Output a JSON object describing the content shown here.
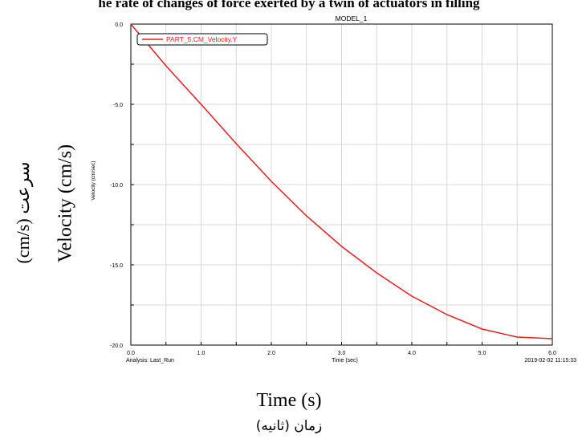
{
  "page_title": "he rate of changes of force exerted by a twin of actuators in filling",
  "y_label_fa": "سرعت (cm/s)",
  "y_label_en": "Velocity (cm/s)",
  "x_label_en": "Time (s)",
  "x_label_fa": "زمان (ثانیه)",
  "chart_data": {
    "type": "line",
    "title": "MODEL_1",
    "xlabel": "Time (sec)",
    "ylabel": "Velocity (cm/sec)",
    "xlim": [
      0,
      6
    ],
    "ylim": [
      -20,
      0
    ],
    "x_ticks": [
      "0.0",
      "1.0",
      "2.0",
      "3.0",
      "4.0",
      "5.0",
      "6.0"
    ],
    "y_ticks": [
      "0.0",
      "-5.0",
      "-10.0",
      "-15.0",
      "-20.0"
    ],
    "grid": true,
    "legend_position": "top-left",
    "footer_left": "Analysis:  Last_Run",
    "footer_right": "2019-02-02 11:15:33",
    "series": [
      {
        "name": "PART_5.CM_Velocity.Y",
        "color": "#e02020",
        "x": [
          0,
          0.5,
          1.0,
          1.5,
          2.0,
          2.5,
          3.0,
          3.5,
          4.0,
          4.5,
          5.0,
          5.5,
          6.0
        ],
        "y": [
          0,
          -2.6,
          -5.0,
          -7.45,
          -9.8,
          -11.95,
          -13.85,
          -15.5,
          -16.95,
          -18.1,
          -19.0,
          -19.5,
          -19.6
        ]
      }
    ]
  }
}
